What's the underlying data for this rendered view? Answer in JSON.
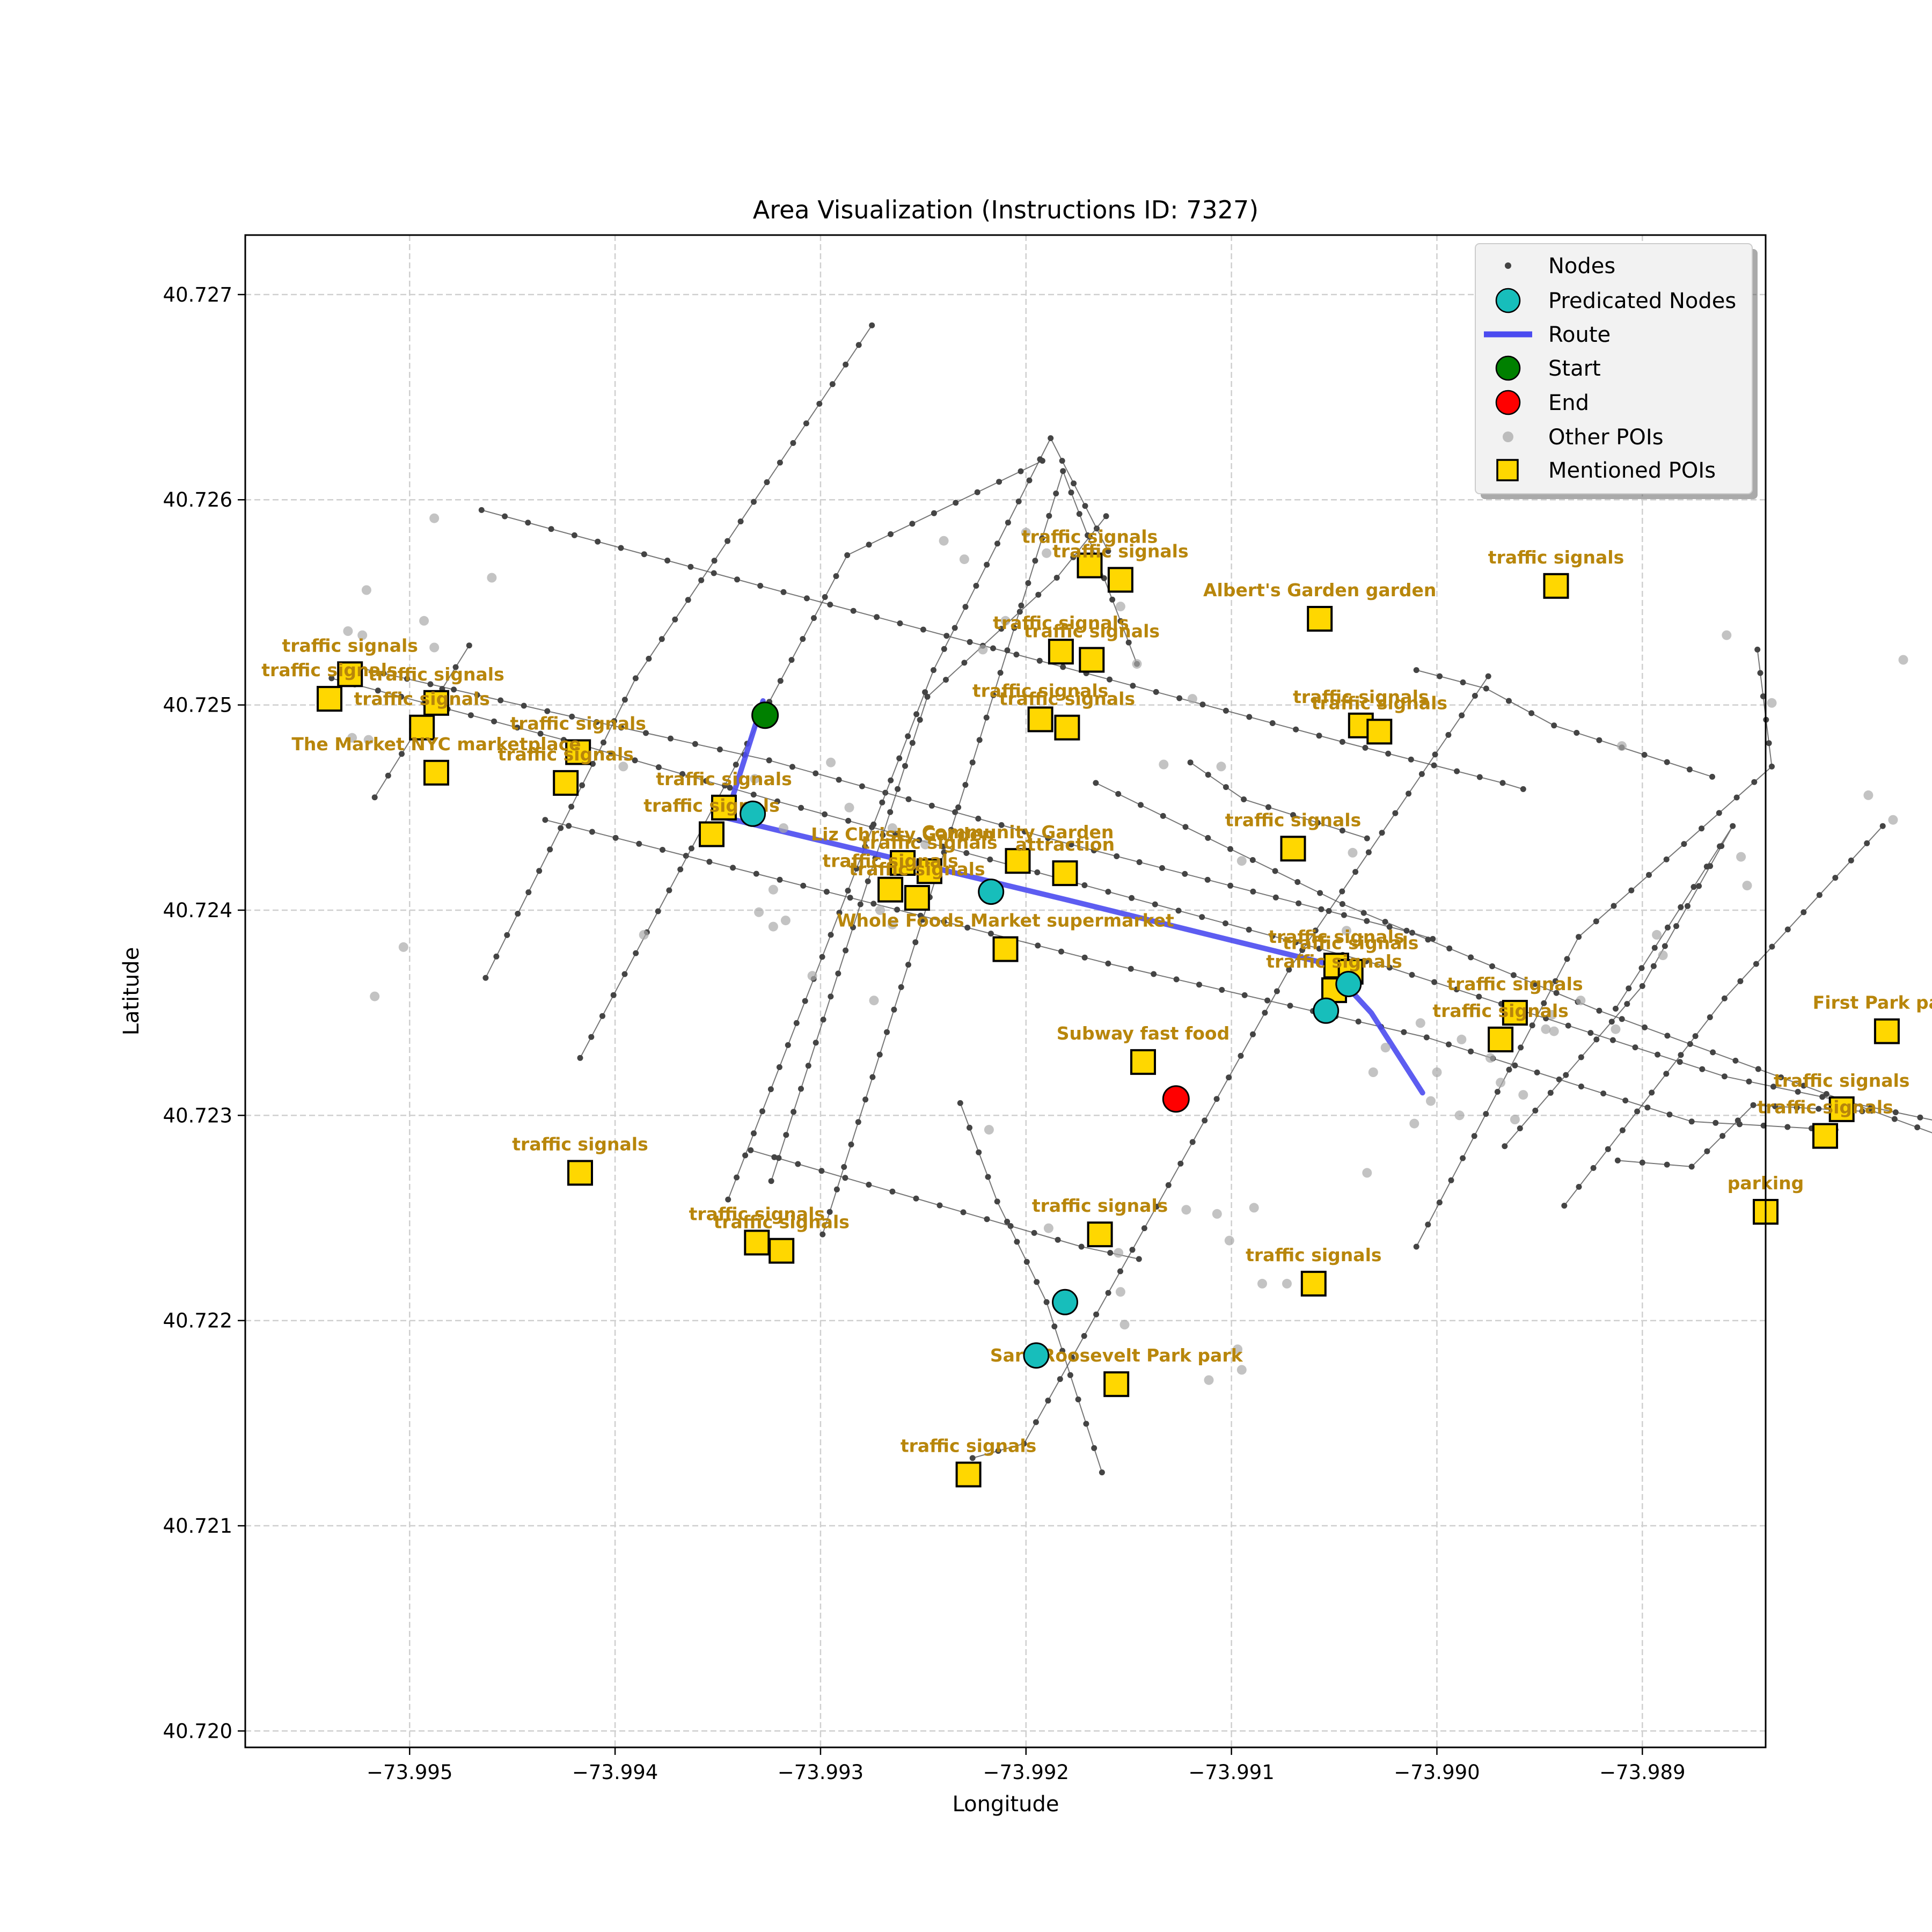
{
  "title": "Area Visualization (Instructions ID: 7327)",
  "chart_data": {
    "type": "map",
    "xlabel": "Longitude",
    "ylabel": "Latitude",
    "xlim": [
      -73.9958,
      -73.9884
    ],
    "ylim": [
      40.71992,
      40.72729
    ],
    "grid": true,
    "x_ticks": [
      -73.995,
      -73.994,
      -73.993,
      -73.992,
      -73.991,
      -73.99,
      -73.989
    ],
    "x_tick_labels": [
      "−73.995",
      "−73.994",
      "−73.993",
      "−73.992",
      "−73.991",
      "−73.990",
      "−73.989"
    ],
    "y_ticks": [
      40.72,
      40.721,
      40.722,
      40.723,
      40.724,
      40.725,
      40.726,
      40.727
    ],
    "y_tick_labels": [
      "40.720",
      "40.721",
      "40.722",
      "40.723",
      "40.724",
      "40.725",
      "40.726",
      "40.727"
    ],
    "legend": {
      "position": "upper right",
      "items": [
        {
          "label": "Nodes",
          "marker": "small-dot",
          "color": "#444444"
        },
        {
          "label": "Predicated Nodes",
          "marker": "circle",
          "color": "#17BEBB"
        },
        {
          "label": "Route",
          "marker": "line",
          "color": "#4B4BF0"
        },
        {
          "label": "Start",
          "marker": "circle",
          "color": "#008000"
        },
        {
          "label": "End",
          "marker": "circle",
          "color": "#FF0000"
        },
        {
          "label": "Other POIs",
          "marker": "dot",
          "color": "#A9A9A9"
        },
        {
          "label": "Mentioned POIs",
          "marker": "square",
          "color": "#FFD700"
        }
      ]
    },
    "roads": [
      [
        [
          -73.99465,
          40.72595
        ],
        [
          -73.99318,
          40.72555
        ],
        [
          -73.99046,
          40.72482
        ],
        [
          -73.98968,
          40.72462
        ],
        [
          -73.98958,
          40.72459
        ]
      ],
      [
        [
          -73.99524,
          40.72518
        ],
        [
          -73.99433,
          40.72497
        ],
        [
          -73.99325,
          40.72473
        ],
        [
          -73.99178,
          40.72432
        ],
        [
          -73.99012,
          40.72389
        ],
        [
          -73.99002,
          40.72386
        ]
      ],
      [
        [
          -73.99538,
          40.72513
        ],
        [
          -73.99425,
          40.72483
        ],
        [
          -73.99321,
          40.72453
        ],
        [
          -73.9916,
          40.72409
        ],
        [
          -73.99023,
          40.72372
        ],
        [
          -73.9886,
          40.72319
        ],
        [
          -73.98741,
          40.72294
        ]
      ],
      [
        [
          -73.99434,
          40.72444
        ],
        [
          -73.9916,
          40.72374
        ],
        [
          -73.99005,
          40.72338
        ],
        [
          -73.98876,
          40.72297
        ],
        [
          -73.98806,
          40.72293
        ]
      ],
      [
        [
          -73.9901,
          40.72517
        ],
        [
          -73.98976,
          40.72508
        ],
        [
          -73.98943,
          40.7249
        ],
        [
          -73.98866,
          40.72465
        ]
      ],
      [
        [
          -73.99166,
          40.72462
        ],
        [
          -73.99046,
          40.72403
        ],
        [
          -73.98921,
          40.72351
        ],
        [
          -73.98733,
          40.72282
        ],
        [
          -73.98692,
          40.7227
        ]
      ],
      [
        [
          -73.99334,
          40.72283
        ],
        [
          -73.99173,
          40.72236
        ],
        [
          -73.99145,
          40.7223
        ]
      ],
      [
        [
          -73.9912,
          40.72472
        ],
        [
          -73.99094,
          40.72454
        ],
        [
          -73.99034,
          40.72435
        ]
      ],
      [
        [
          -73.99517,
          40.72455
        ],
        [
          -73.99471,
          40.72529
        ]
      ],
      [
        [
          -73.99463,
          40.72367
        ],
        [
          -73.9939,
          40.72513
        ],
        [
          -73.99275,
          40.72685
        ]
      ],
      [
        [
          -73.99417,
          40.72328
        ],
        [
          -73.99287,
          40.72573
        ],
        [
          -73.99192,
          40.72619
        ]
      ],
      [
        [
          -73.99345,
          40.72259
        ],
        [
          -73.99245,
          40.72517
        ],
        [
          -73.99188,
          40.7263
        ],
        [
          -73.9916,
          40.72575
        ]
      ],
      [
        [
          -73.99324,
          40.72268
        ],
        [
          -73.99248,
          40.72504
        ],
        [
          -73.99185,
          40.72562
        ],
        [
          -73.99161,
          40.72592
        ]
      ],
      [
        [
          -73.99299,
          40.72242
        ],
        [
          -73.99226,
          40.72472
        ],
        [
          -73.99182,
          40.72614
        ],
        [
          -73.99146,
          40.7252
        ]
      ],
      [
        [
          -73.99226,
          40.72133
        ],
        [
          -73.99201,
          40.7214
        ],
        [
          -73.99072,
          40.72371
        ],
        [
          -73.98975,
          40.72514
        ]
      ],
      [
        [
          -73.9901,
          40.72236
        ],
        [
          -73.98931,
          40.72387
        ],
        [
          -73.98837,
          40.7247
        ],
        [
          -73.98844,
          40.72527
        ]
      ],
      [
        [
          -73.98967,
          40.72285
        ],
        [
          -73.989,
          40.72363
        ],
        [
          -73.98856,
          40.72441
        ],
        [
          -73.98913,
          40.72352
        ]
      ],
      [
        [
          -73.98938,
          40.72256
        ],
        [
          -73.9886,
          40.72357
        ],
        [
          -73.98783,
          40.72441
        ]
      ],
      [
        [
          -73.99232,
          40.72306
        ],
        [
          -73.99214,
          40.72258
        ],
        [
          -73.9919,
          40.72209
        ],
        [
          -73.99163,
          40.72126
        ]
      ],
      [
        [
          -73.98912,
          40.72278
        ],
        [
          -73.98876,
          40.72275
        ],
        [
          -73.98846,
          40.72305
        ],
        [
          -73.98793,
          40.72302
        ]
      ]
    ],
    "route": [
      [
        -73.99328,
        40.72502
      ],
      [
        -73.99346,
        40.72445
      ],
      [
        -73.9918,
        40.72405
      ],
      [
        -73.99054,
        40.72374
      ],
      [
        -73.99032,
        40.7235
      ],
      [
        -73.99007,
        40.72311
      ]
    ],
    "start": [
      -73.99327,
      40.72495
    ],
    "end": [
      -73.99127,
      40.72308
    ],
    "predicated_nodes": [
      [
        -73.99333,
        40.72447
      ],
      [
        -73.99217,
        40.72409
      ],
      [
        -73.99043,
        40.72364
      ],
      [
        -73.99054,
        40.72351
      ],
      [
        -73.99181,
        40.72209
      ],
      [
        -73.99195,
        40.72183
      ]
    ],
    "other_pois": [
      [
        -73.99488,
        40.72591
      ],
      [
        -73.99521,
        40.72556
      ],
      [
        -73.9953,
        40.72536
      ],
      [
        -73.99523,
        40.72534
      ],
      [
        -73.99488,
        40.72528
      ],
      [
        -73.99493,
        40.72541
      ],
      [
        -73.9946,
        40.72562
      ],
      [
        -73.99528,
        40.72484
      ],
      [
        -73.9952,
        40.72483
      ],
      [
        -73.99503,
        40.72382
      ],
      [
        -73.99517,
        40.72358
      ],
      [
        -73.99396,
        40.7247
      ],
      [
        -73.99332,
        40.72464
      ],
      [
        -73.99286,
        40.7245
      ],
      [
        -73.99318,
        40.7244
      ],
      [
        -73.99295,
        40.72472
      ],
      [
        -73.99265,
        40.7244
      ],
      [
        -73.99249,
        40.72432
      ],
      [
        -73.99255,
        40.72423
      ],
      [
        -73.99323,
        40.7241
      ],
      [
        -73.99317,
        40.72395
      ],
      [
        -73.99323,
        40.72392
      ],
      [
        -73.99386,
        40.72388
      ],
      [
        -73.9933,
        40.72399
      ],
      [
        -73.99271,
        40.724
      ],
      [
        -73.99265,
        40.72393
      ],
      [
        -73.99304,
        40.72368
      ],
      [
        -73.99274,
        40.72356
      ],
      [
        -73.9919,
        40.72574
      ],
      [
        -73.9924,
        40.7258
      ],
      [
        -73.9923,
        40.72571
      ],
      [
        -73.992,
        40.72584
      ],
      [
        -73.99221,
        40.72527
      ],
      [
        -73.9921,
        40.72541
      ],
      [
        -73.99154,
        40.72548
      ],
      [
        -73.99146,
        40.7252
      ],
      [
        -73.99119,
        40.72503
      ],
      [
        -73.99105,
        40.7247
      ],
      [
        -73.99133,
        40.72471
      ],
      [
        -73.99095,
        40.72424
      ],
      [
        -73.99041,
        40.72428
      ],
      [
        -73.99044,
        40.7239
      ],
      [
        -73.99008,
        40.72345
      ],
      [
        -73.99025,
        40.72333
      ],
      [
        -73.99048,
        40.72357
      ],
      [
        -73.98974,
        40.72328
      ],
      [
        -73.98958,
        40.7231
      ],
      [
        -73.99003,
        40.72307
      ],
      [
        -73.98969,
        40.72316
      ],
      [
        -73.98943,
        40.72341
      ],
      [
        -73.98913,
        40.72342
      ],
      [
        -73.9893,
        40.72356
      ],
      [
        -73.9889,
        40.72378
      ],
      [
        -73.98893,
        40.72388
      ],
      [
        -73.98852,
        40.72426
      ],
      [
        -73.98849,
        40.72412
      ],
      [
        -73.9891,
        40.7248
      ],
      [
        -73.98859,
        40.72534
      ],
      [
        -73.98837,
        40.72501
      ],
      [
        -73.9879,
        40.72456
      ],
      [
        -73.98773,
        40.72522
      ],
      [
        -73.98778,
        40.72444
      ],
      [
        -73.98736,
        40.72421
      ],
      [
        -73.98724,
        40.72351
      ],
      [
        -73.98731,
        40.72329
      ],
      [
        -73.9871,
        40.72327
      ],
      [
        -73.98716,
        40.72342
      ],
      [
        -73.98695,
        40.72289
      ],
      [
        -73.98673,
        40.72296
      ],
      [
        -73.98698,
        40.72307
      ],
      [
        -73.98676,
        40.72307
      ],
      [
        -73.9861,
        40.72459
      ],
      [
        -73.9862,
        40.72286
      ],
      [
        -73.98589,
        40.72301
      ],
      [
        -73.9858,
        40.72327
      ],
      [
        -73.98562,
        40.72341
      ],
      [
        -73.98546,
        40.72287
      ],
      [
        -73.98523,
        40.72268
      ],
      [
        -73.98523,
        40.72277
      ],
      [
        -73.98507,
        40.72268
      ],
      [
        -73.9851,
        40.72265
      ],
      [
        -73.99218,
        40.72293
      ],
      [
        -73.99189,
        40.72245
      ],
      [
        -73.99155,
        40.72233
      ],
      [
        -73.99154,
        40.72214
      ],
      [
        -73.99085,
        40.72218
      ],
      [
        -73.99073,
        40.72218
      ],
      [
        -73.99097,
        40.72186
      ],
      [
        -73.99095,
        40.72176
      ],
      [
        -73.99111,
        40.72171
      ],
      [
        -73.99089,
        40.72255
      ],
      [
        -73.99031,
        40.72321
      ],
      [
        -73.99011,
        40.72296
      ],
      [
        -73.99034,
        40.72272
      ],
      [
        -73.99101,
        40.72239
      ],
      [
        -73.99107,
        40.72252
      ],
      [
        -73.99122,
        40.72254
      ],
      [
        -73.99152,
        40.72198
      ],
      [
        -73.98944,
        40.72349
      ],
      [
        -73.98988,
        40.72337
      ],
      [
        -73.98947,
        40.72342
      ],
      [
        -73.99,
        40.72321
      ],
      [
        -73.98989,
        40.723
      ],
      [
        -73.98962,
        40.72298
      ]
    ],
    "mentioned_pois": [
      {
        "label": "traffic signals",
        "lon": -73.99169,
        "lat": 40.72568
      },
      {
        "label": "traffic signals",
        "lon": -73.99154,
        "lat": 40.72561
      },
      {
        "label": "Albert's Garden   garden",
        "lon": -73.99057,
        "lat": 40.72542
      },
      {
        "label": "traffic signals",
        "lon": -73.98942,
        "lat": 40.72558
      },
      {
        "label": "traffic signals",
        "lon": -73.99183,
        "lat": 40.72526
      },
      {
        "label": "traffic signals",
        "lon": -73.99168,
        "lat": 40.72522
      },
      {
        "label": "traffic signals",
        "lon": -73.99193,
        "lat": 40.72493
      },
      {
        "label": "traffic signals",
        "lon": -73.9918,
        "lat": 40.72489
      },
      {
        "label": "traffic signals",
        "lon": -73.99037,
        "lat": 40.7249
      },
      {
        "label": "traffic signals",
        "lon": -73.99028,
        "lat": 40.72487
      },
      {
        "label": "traffic signals",
        "lon": -73.99529,
        "lat": 40.72515
      },
      {
        "label": "traffic signals",
        "lon": -73.99539,
        "lat": 40.72503
      },
      {
        "label": "traffic signals",
        "lon": -73.99487,
        "lat": 40.72501
      },
      {
        "label": "traffic signals",
        "lon": -73.99494,
        "lat": 40.72489
      },
      {
        "label": "The Market NYC marketplace",
        "lon": -73.99487,
        "lat": 40.72467
      },
      {
        "label": "traffic signals",
        "lon": -73.99418,
        "lat": 40.72477
      },
      {
        "label": "traffic signals",
        "lon": -73.99424,
        "lat": 40.72462
      },
      {
        "label": "traffic signals",
        "lon": -73.99347,
        "lat": 40.7245
      },
      {
        "label": "traffic signals",
        "lon": -73.99353,
        "lat": 40.72437
      },
      {
        "label": "Liz Christy Garden",
        "lon": -73.9926,
        "lat": 40.72423
      },
      {
        "label": "traffic signals",
        "lon": -73.99247,
        "lat": 40.72419
      },
      {
        "label": "traffic signals",
        "lon": -73.99266,
        "lat": 40.7241
      },
      {
        "label": "traffic signals",
        "lon": -73.99253,
        "lat": 40.72406
      },
      {
        "label": "Community Garden",
        "lon": -73.99204,
        "lat": 40.72424
      },
      {
        "label": "attraction",
        "lon": -73.99181,
        "lat": 40.72418
      },
      {
        "label": "Whole Foods Market   supermarket",
        "lon": -73.9921,
        "lat": 40.72381
      },
      {
        "label": "traffic signals",
        "lon": -73.9907,
        "lat": 40.7243
      },
      {
        "label": "traffic signals",
        "lon": -73.99049,
        "lat": 40.72373
      },
      {
        "label": "traffic signals",
        "lon": -73.99042,
        "lat": 40.7237
      },
      {
        "label": "traffic signals",
        "lon": -73.9905,
        "lat": 40.72361
      },
      {
        "label": "traffic signals",
        "lon": -73.98962,
        "lat": 40.7235
      },
      {
        "label": "traffic signals",
        "lon": -73.98969,
        "lat": 40.72337
      },
      {
        "label": "First Park   park",
        "lon": -73.98781,
        "lat": 40.72341
      },
      {
        "label": "Subway fast food",
        "lon": -73.99143,
        "lat": 40.72326
      },
      {
        "label": "traffic signals",
        "lon": -73.98803,
        "lat": 40.72303
      },
      {
        "label": "traffic signals",
        "lon": -73.98811,
        "lat": 40.7229
      },
      {
        "label": "parking",
        "lon": -73.9884,
        "lat": 40.72253
      },
      {
        "label": "traffic signals",
        "lon": -73.99417,
        "lat": 40.72272
      },
      {
        "label": "traffic signals",
        "lon": -73.99331,
        "lat": 40.72238
      },
      {
        "label": "traffic signals",
        "lon": -73.99319,
        "lat": 40.72234
      },
      {
        "label": "traffic signals",
        "lon": -73.99164,
        "lat": 40.72242
      },
      {
        "label": "traffic signals",
        "lon": -73.9906,
        "lat": 40.72218
      },
      {
        "label": "Sara Roosevelt Park   park",
        "lon": -73.99156,
        "lat": 40.72169
      },
      {
        "label": "traffic signals",
        "lon": -73.99228,
        "lat": 40.72125
      }
    ]
  }
}
